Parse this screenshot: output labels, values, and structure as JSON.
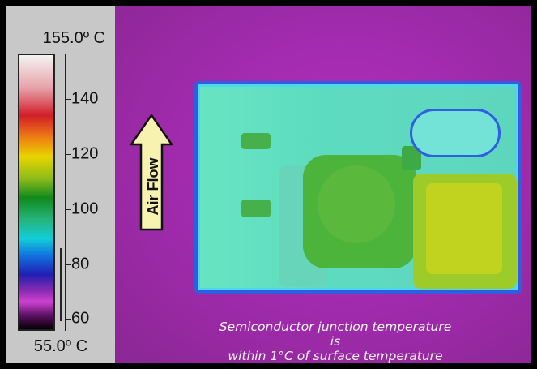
{
  "scale": {
    "max_label": "155.0º C",
    "min_label": "55.0º C",
    "ticks": [
      {
        "label": "140",
        "value": 140
      },
      {
        "label": "120",
        "value": 120
      },
      {
        "label": "100",
        "value": 100
      },
      {
        "label": "80",
        "value": 80
      },
      {
        "label": "60",
        "value": 60
      }
    ]
  },
  "annotation": {
    "arrow_label": "Air Flow"
  },
  "caption": {
    "line1": "Semiconductor junction temperature is",
    "line2": "within 1°C of surface temperature"
  },
  "colors": {
    "background_purple": "#9d2aa8",
    "board_cyan": "#5ddbc0",
    "board_outline": "#2f5fe0",
    "component_green": "#4cb33b",
    "hot_yellow": "#c2d31f"
  }
}
